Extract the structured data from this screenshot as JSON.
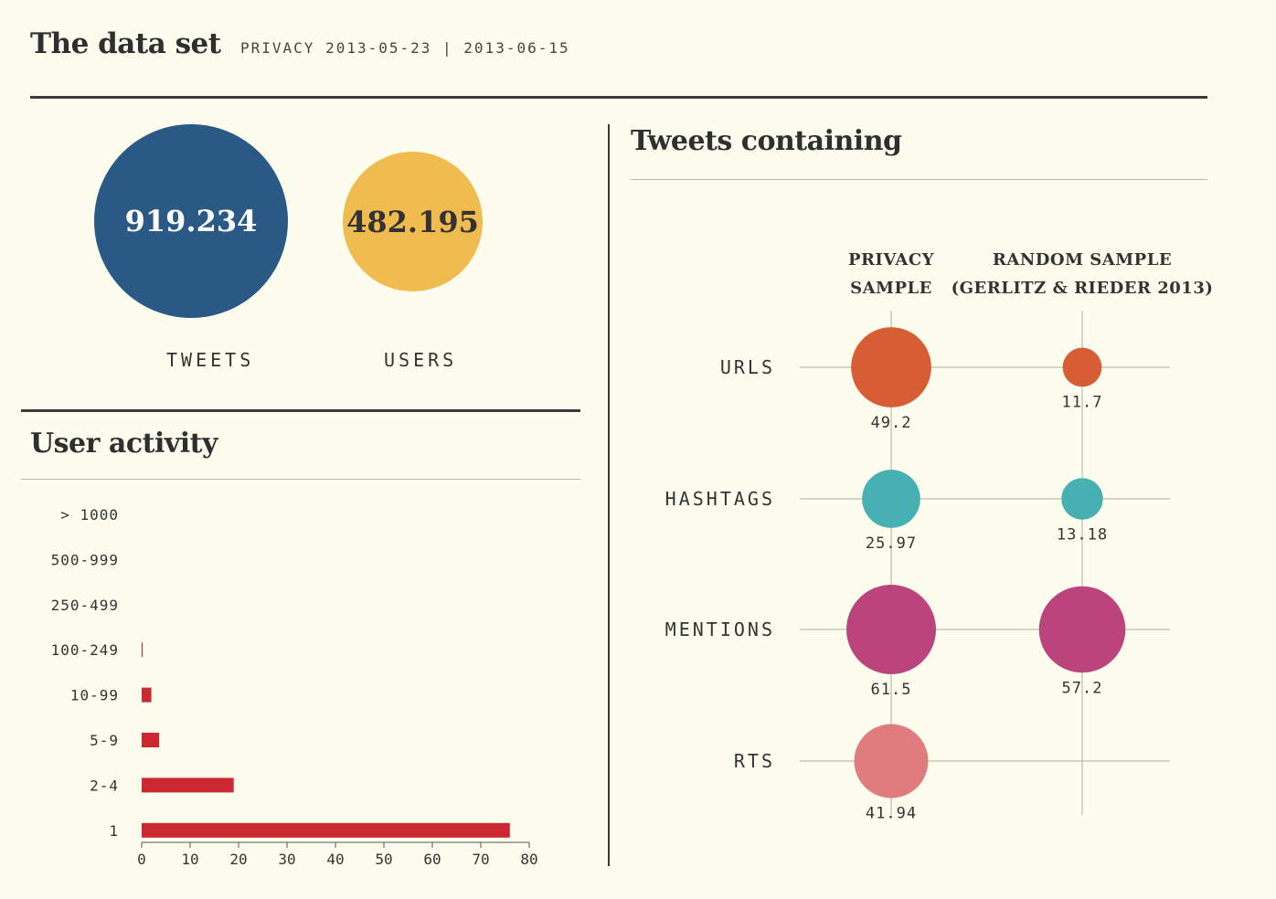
{
  "header": {
    "title": "The data set",
    "subtitle": "PRIVACY 2013-05-23 | 2013-06-15"
  },
  "totals": {
    "tweets": {
      "value": "919.234",
      "label": "TWEETS",
      "color": "#2a5985"
    },
    "users": {
      "value": "482.195",
      "label": "USERS",
      "color": "#f0bb4f"
    }
  },
  "colors": {
    "urls": "#d75d35",
    "hashtags": "#47b0b3",
    "mentions": "#bb447d",
    "rts": "#e07c7e",
    "activity_bar": "#cc2832",
    "tweets_text": "#ffffff",
    "users_text": "#333333"
  },
  "user_activity": {
    "title": "User activity"
  },
  "tweets_containing": {
    "title": "Tweets containing"
  },
  "chart_data": [
    {
      "type": "bar",
      "orientation": "horizontal",
      "title": "User activity",
      "categories": [
        "> 1000",
        "500-999",
        "250-499",
        "100-249",
        "10-99",
        "5-9",
        "2-4",
        "1"
      ],
      "values": [
        0,
        0,
        0,
        0.2,
        2,
        3.6,
        19,
        76
      ],
      "xlim": [
        0,
        80
      ],
      "xticks": [
        0,
        10,
        20,
        30,
        40,
        50,
        60,
        70,
        80
      ],
      "grid": false
    },
    {
      "type": "scatter",
      "subtype": "bubble-matrix",
      "title": "Tweets containing",
      "columns": [
        "PRIVACY SAMPLE",
        "RANDOM SAMPLE (GERLITZ & RIEDER 2013)"
      ],
      "rows": [
        "URLS",
        "HASHTAGS",
        "MENTIONS",
        "RTS"
      ],
      "values": [
        [
          49.2,
          11.7
        ],
        [
          25.97,
          13.18
        ],
        [
          61.5,
          57.2
        ],
        [
          41.94,
          null
        ]
      ],
      "value_labels": [
        [
          "49.2",
          "11.7"
        ],
        [
          "25.97",
          "13.18"
        ],
        [
          "61.5",
          "57.2"
        ],
        [
          "41.94",
          null
        ]
      ]
    }
  ]
}
